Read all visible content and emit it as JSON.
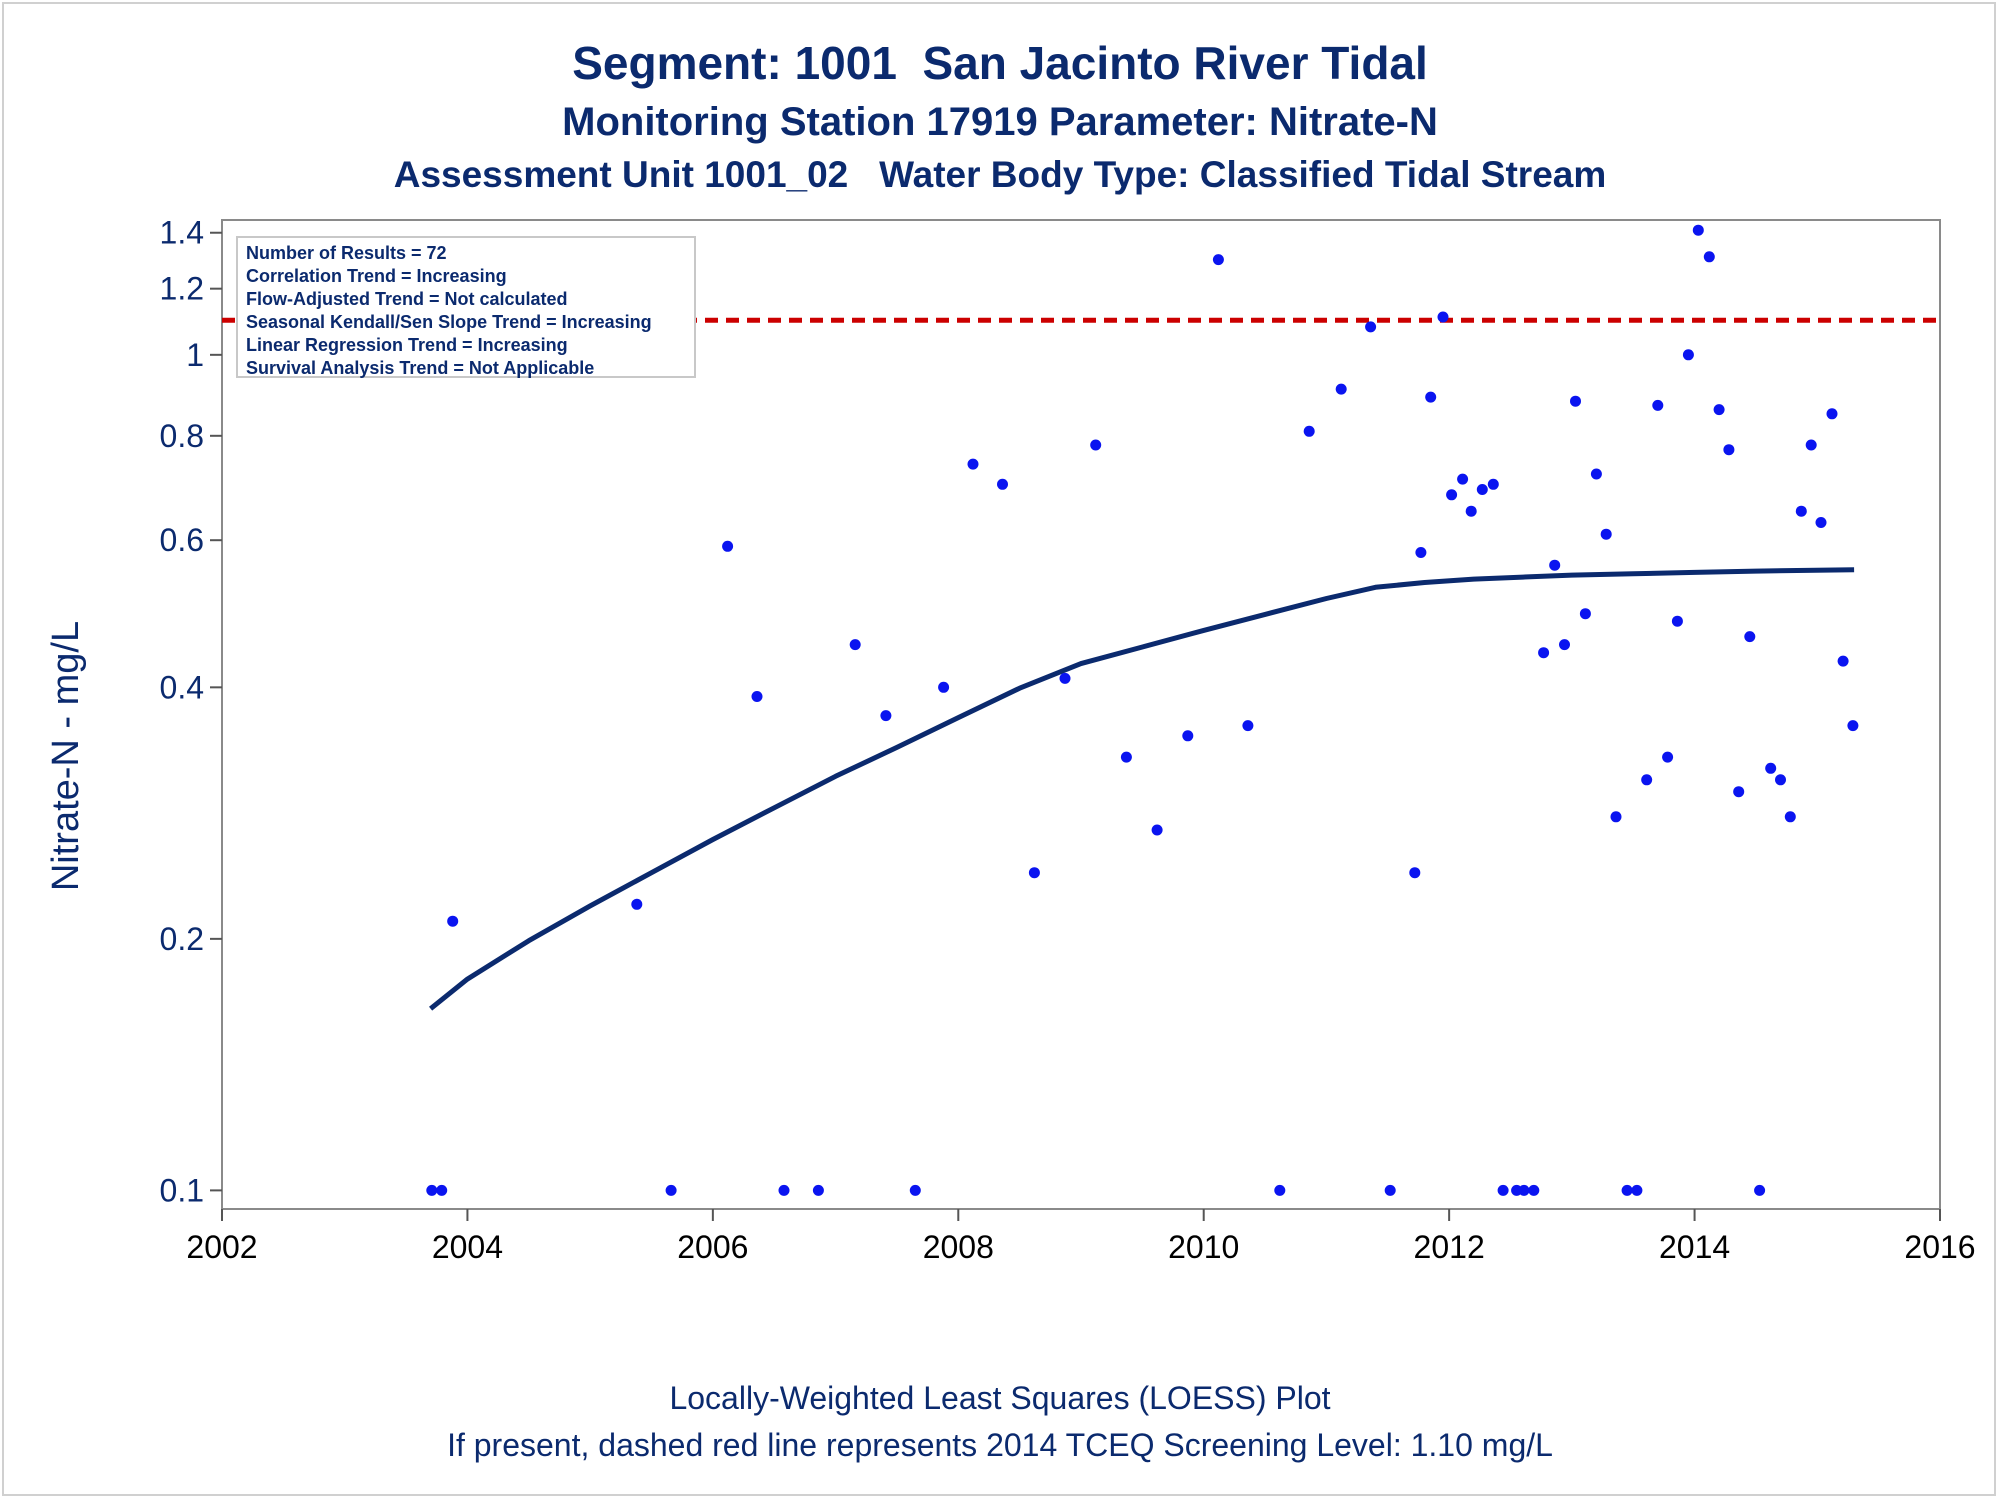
{
  "titles": {
    "line1": "Segment: 1001  San Jacinto River Tidal",
    "line2": "Monitoring Station 17919 Parameter: Nitrate-N",
    "line3": "Assessment Unit 1001_02   Water Body Type: Classified Tidal Stream"
  },
  "footnotes": {
    "line1": "Locally-Weighted Least Squares (LOESS) Plot",
    "line2": "If present, dashed red line represents 2014 TCEQ Screening Level: 1.10 mg/L"
  },
  "legend": {
    "items": [
      "Number of Results = 72",
      "Correlation Trend = Increasing",
      "Flow-Adjusted Trend = Not calculated",
      "Seasonal Kendall/Sen Slope Trend = Increasing",
      "Linear Regression Trend = Increasing",
      "Survival Analysis Trend = Not Applicable"
    ]
  },
  "colors": {
    "points": "#0a14f0",
    "loess": "#0b2a6e",
    "screening": "#cc0000",
    "text": "#0b2a6e"
  },
  "chart_data": {
    "type": "scatter",
    "ylabel": "Nitrate-N - mg/L",
    "xlabel": "",
    "xlim": [
      2002,
      2016
    ],
    "ylim": [
      0.095,
      1.45
    ],
    "yscale": "log",
    "xticks": [
      2002,
      2004,
      2006,
      2008,
      2010,
      2012,
      2014,
      2016
    ],
    "yticks": [
      0.1,
      0.2,
      0.4,
      0.6,
      0.8,
      1,
      1.2,
      1.4
    ],
    "ytick_labels": [
      "0.1",
      "0.2",
      "0.4",
      "0.6",
      "0.8",
      "1",
      "1.2",
      "1.4"
    ],
    "grid": false,
    "legend_position": "top-left",
    "screening_level": 1.1,
    "points": [
      [
        2003.71,
        0.1
      ],
      [
        2003.79,
        0.1
      ],
      [
        2003.88,
        0.21
      ],
      [
        2005.38,
        0.22
      ],
      [
        2005.66,
        0.1
      ],
      [
        2006.12,
        0.59
      ],
      [
        2006.36,
        0.39
      ],
      [
        2006.58,
        0.1
      ],
      [
        2006.86,
        0.1
      ],
      [
        2007.16,
        0.45
      ],
      [
        2007.41,
        0.37
      ],
      [
        2007.65,
        0.1
      ],
      [
        2007.88,
        0.4
      ],
      [
        2008.12,
        0.74
      ],
      [
        2008.36,
        0.7
      ],
      [
        2008.62,
        0.24
      ],
      [
        2008.87,
        0.41
      ],
      [
        2009.12,
        0.78
      ],
      [
        2009.37,
        0.33
      ],
      [
        2009.62,
        0.27
      ],
      [
        2009.87,
        0.35
      ],
      [
        2010.12,
        1.3
      ],
      [
        2010.36,
        0.36
      ],
      [
        2010.62,
        0.1
      ],
      [
        2010.86,
        0.81
      ],
      [
        2011.12,
        0.91
      ],
      [
        2011.36,
        1.08
      ],
      [
        2011.52,
        0.1
      ],
      [
        2011.72,
        0.24
      ],
      [
        2011.77,
        0.58
      ],
      [
        2011.85,
        0.89
      ],
      [
        2011.95,
        1.11
      ],
      [
        2012.02,
        0.68
      ],
      [
        2012.11,
        0.71
      ],
      [
        2012.18,
        0.65
      ],
      [
        2012.27,
        0.69
      ],
      [
        2012.36,
        0.7
      ],
      [
        2012.44,
        0.1
      ],
      [
        2012.55,
        0.1
      ],
      [
        2012.61,
        0.1
      ],
      [
        2012.69,
        0.1
      ],
      [
        2012.77,
        0.44
      ],
      [
        2012.86,
        0.56
      ],
      [
        2012.94,
        0.45
      ],
      [
        2013.03,
        0.88
      ],
      [
        2013.11,
        0.49
      ],
      [
        2013.2,
        0.72
      ],
      [
        2013.28,
        0.61
      ],
      [
        2013.36,
        0.28
      ],
      [
        2013.45,
        0.1
      ],
      [
        2013.53,
        0.1
      ],
      [
        2013.61,
        0.31
      ],
      [
        2013.7,
        0.87
      ],
      [
        2013.78,
        0.33
      ],
      [
        2013.86,
        0.48
      ],
      [
        2013.95,
        1.0
      ],
      [
        2014.03,
        1.41
      ],
      [
        2014.12,
        1.31
      ],
      [
        2014.2,
        0.86
      ],
      [
        2014.28,
        0.77
      ],
      [
        2014.36,
        0.3
      ],
      [
        2014.45,
        0.46
      ],
      [
        2014.53,
        0.1
      ],
      [
        2014.62,
        0.32
      ],
      [
        2014.7,
        0.31
      ],
      [
        2014.78,
        0.28
      ],
      [
        2014.87,
        0.65
      ],
      [
        2014.95,
        0.78
      ],
      [
        2015.03,
        0.63
      ],
      [
        2015.12,
        0.85
      ],
      [
        2015.21,
        0.43
      ],
      [
        2015.29,
        0.36
      ]
    ],
    "loess": [
      [
        2003.7,
        0.165
      ],
      [
        2004.0,
        0.179
      ],
      [
        2004.5,
        0.199
      ],
      [
        2005.0,
        0.219
      ],
      [
        2005.5,
        0.24
      ],
      [
        2006.0,
        0.263
      ],
      [
        2006.5,
        0.287
      ],
      [
        2007.0,
        0.313
      ],
      [
        2007.5,
        0.339
      ],
      [
        2008.0,
        0.368
      ],
      [
        2008.5,
        0.399
      ],
      [
        2009.0,
        0.427
      ],
      [
        2009.5,
        0.447
      ],
      [
        2010.0,
        0.468
      ],
      [
        2010.5,
        0.489
      ],
      [
        2011.0,
        0.511
      ],
      [
        2011.4,
        0.527
      ],
      [
        2011.8,
        0.534
      ],
      [
        2012.2,
        0.539
      ],
      [
        2012.6,
        0.542
      ],
      [
        2013.0,
        0.545
      ],
      [
        2013.5,
        0.547
      ],
      [
        2014.0,
        0.549
      ],
      [
        2014.5,
        0.551
      ],
      [
        2015.3,
        0.553
      ]
    ]
  }
}
